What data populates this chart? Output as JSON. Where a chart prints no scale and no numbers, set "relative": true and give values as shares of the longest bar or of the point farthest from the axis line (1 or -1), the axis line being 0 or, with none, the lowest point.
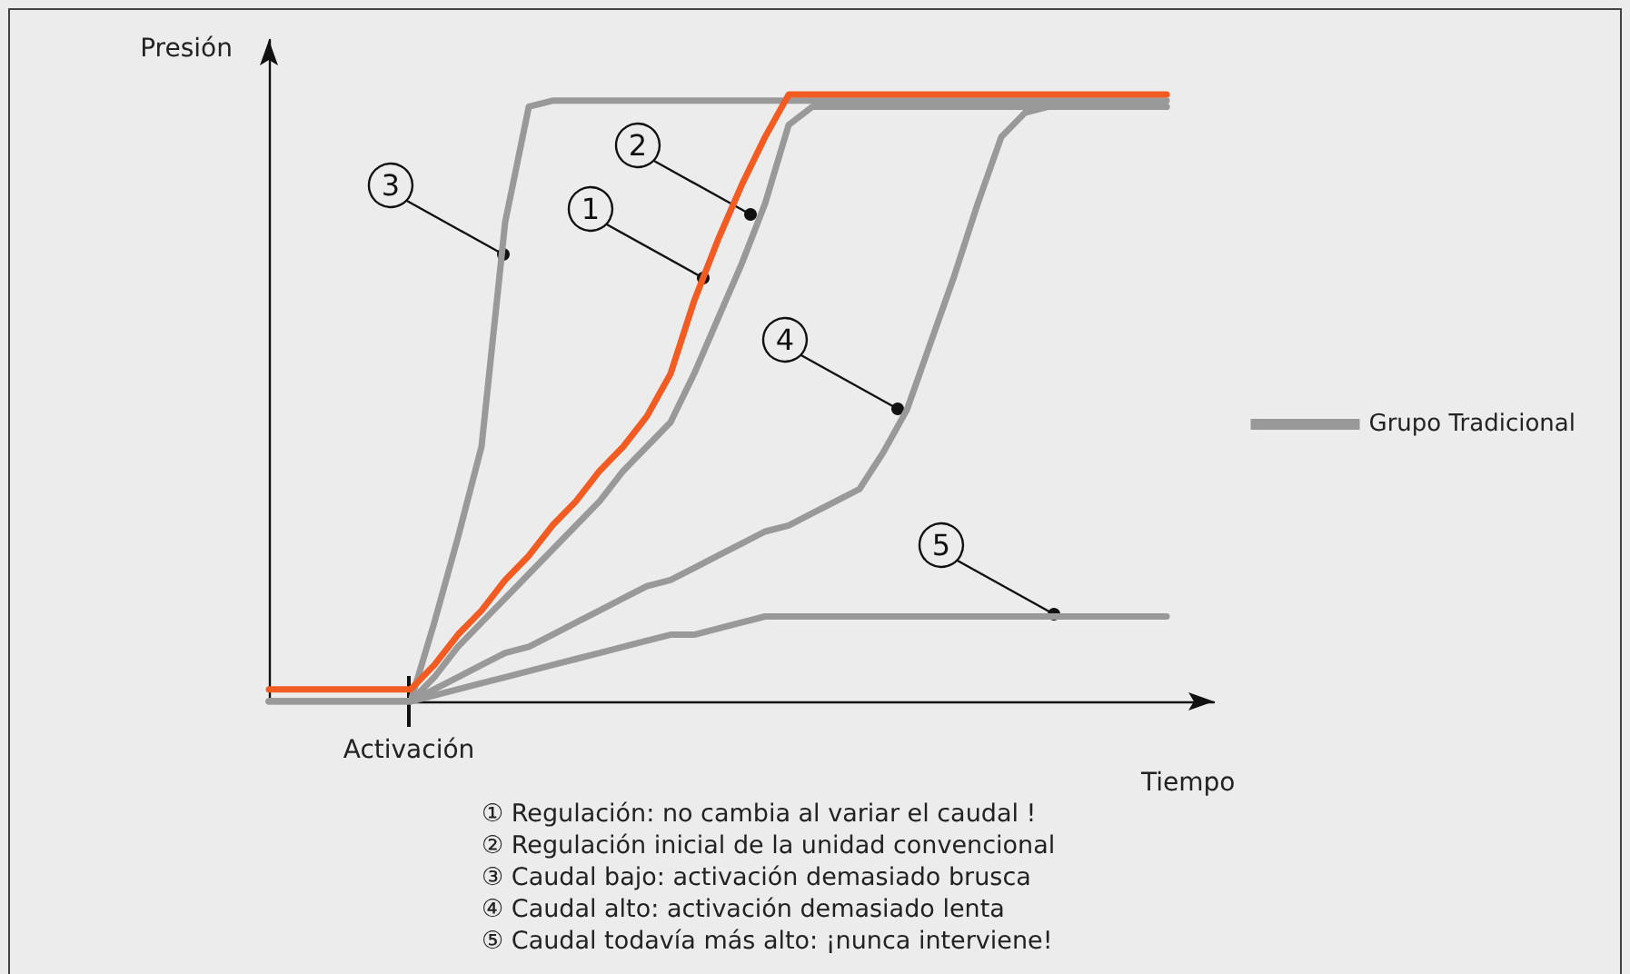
{
  "chart_data": {
    "type": "line",
    "relative": true,
    "xlabel": "Tiempo",
    "ylabel": "Presión",
    "categories": [
      null,
      null,
      null,
      null,
      null,
      null,
      null,
      null,
      null,
      null,
      null,
      null,
      null,
      null,
      null,
      null,
      null,
      null,
      null,
      null,
      null,
      null,
      null,
      null,
      null,
      null,
      null,
      null,
      null,
      null,
      null,
      null,
      null,
      null,
      null,
      null,
      null,
      null,
      null,
      null,
      null
    ],
    "series": [
      {
        "name": "Grupo Tradicional",
        "color": "#999999",
        "values": [
          0,
          0,
          0,
          0,
          0,
          0,
          0,
          0.13,
          0.27,
          0.42,
          0.79,
          0.98,
          0.99,
          0.99,
          0.99,
          0.99,
          0.99,
          0.99,
          0.99,
          0.99,
          0.99,
          0.99,
          0.99,
          0.99,
          0.99,
          0.99,
          0.99,
          0.99,
          0.99,
          0.99,
          0.99,
          0.99,
          0.99,
          0.99,
          0.99,
          0.99,
          0.99,
          0.99,
          0.99,
          null,
          null
        ]
      },
      {
        "color": "#999999",
        "values": [
          0,
          0,
          0,
          0,
          0,
          0,
          0,
          0.04,
          0.09,
          0.13,
          0.17,
          0.21,
          0.25,
          0.29,
          0.33,
          0.38,
          0.42,
          0.46,
          0.54,
          0.63,
          0.72,
          0.82,
          0.95,
          0.98,
          0.98,
          0.98,
          0.98,
          0.98,
          0.98,
          0.98,
          0.98,
          0.98,
          0.98,
          0.98,
          0.98,
          0.98,
          0.98,
          0.98,
          0.98,
          null,
          null
        ]
      },
      {
        "color": "#999999",
        "values": [
          0,
          0,
          0,
          0,
          0,
          0,
          0,
          0.02,
          0.04,
          0.06,
          0.08,
          0.09,
          0.11,
          0.13,
          0.15,
          0.17,
          0.19,
          0.2,
          0.22,
          0.24,
          0.26,
          0.28,
          0.29,
          0.31,
          0.33,
          0.35,
          0.41,
          0.48,
          0.59,
          0.7,
          0.82,
          0.93,
          0.97,
          0.98,
          0.98,
          0.98,
          0.98,
          0.98,
          0.98,
          null,
          null
        ]
      },
      {
        "color": "#999999",
        "values": [
          0,
          0,
          0,
          0,
          0,
          0,
          0,
          0.01,
          0.02,
          0.03,
          0.04,
          0.05,
          0.06,
          0.07,
          0.08,
          0.09,
          0.1,
          0.11,
          0.11,
          0.12,
          0.13,
          0.14,
          0.14,
          0.14,
          0.14,
          0.14,
          0.14,
          0.14,
          0.14,
          0.14,
          0.14,
          0.14,
          0.14,
          0.14,
          0.14,
          0.14,
          0.14,
          0.14,
          0.14,
          null,
          null
        ]
      },
      {
        "color": "#f25c22",
        "values": [
          0.02,
          0.02,
          0.02,
          0.02,
          0.02,
          0.02,
          0.02,
          0.06,
          0.11,
          0.15,
          0.2,
          0.24,
          0.29,
          0.33,
          0.38,
          0.42,
          0.47,
          0.54,
          0.66,
          0.76,
          0.85,
          0.93,
          1,
          1,
          1,
          1,
          1,
          1,
          1,
          1,
          1,
          1,
          1,
          1,
          1,
          1,
          1,
          1,
          1,
          null,
          null
        ]
      }
    ],
    "annotations": [
      "Activación",
      "1",
      "2",
      "3",
      "4",
      "5",
      "① Regulación: no cambia al variar el caudal !",
      "② Regulación inicial de la unidad convencional",
      "③ Caudal bajo: activación demasiado brusca",
      "④ Caudal alto: activación demasiado lenta",
      "⑤ Caudal todavía más alto: ¡nunca interviene!"
    ],
    "legend": "right",
    "grid": false,
    "marker": "none",
    "line_style": "solid"
  }
}
